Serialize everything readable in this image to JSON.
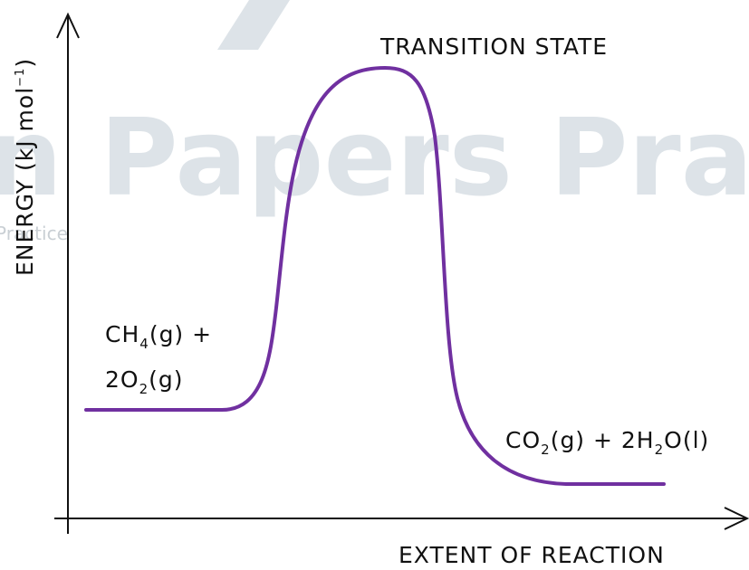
{
  "watermark": {
    "large": "n Papers Practice",
    "small": "Practice"
  },
  "transition_state": "TRANSITION STATE",
  "y_axis_label": [
    "ENERGY (kJ mol",
    "−1",
    ")"
  ],
  "x_axis_label": "EXTENT OF REACTION",
  "reactants": {
    "line1": [
      "CH",
      "4",
      "(g) +"
    ],
    "line2": [
      "2O",
      "2",
      "(g)"
    ]
  },
  "products": [
    "CO",
    "2",
    "(g) + 2H",
    "2",
    "O(l)"
  ]
}
